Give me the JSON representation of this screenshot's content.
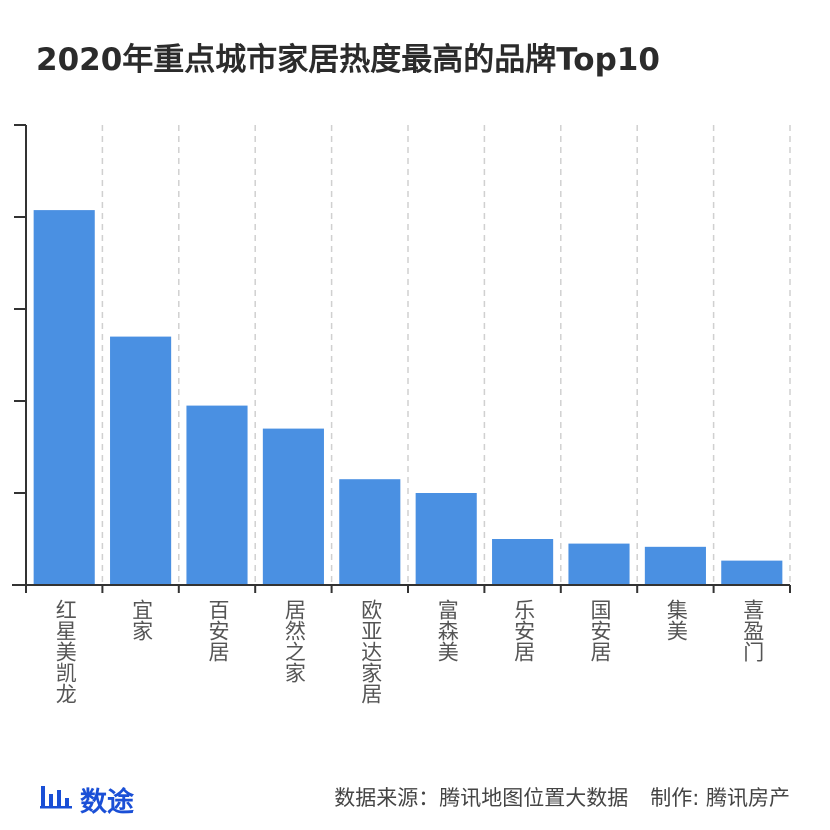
{
  "title": "2020年重点城市家居热度最高的品牌Top10",
  "colors": {
    "bar": "#4a90e2",
    "axis": "#333333",
    "grid": "#d0d0d0",
    "label": "#555555",
    "logo": "#1a4fd6"
  },
  "chart_data": {
    "type": "bar",
    "title": "2020年重点城市家居热度最高的品牌Top10",
    "xlabel": "",
    "ylabel": "",
    "categories": [
      "红星美凯龙",
      "宜家",
      "百安居",
      "居然之家",
      "欧亚达家居",
      "富森美",
      "乐安居",
      "国安居",
      "集美",
      "喜盈门"
    ],
    "values": [
      81.5,
      54,
      39,
      34,
      23,
      20,
      10,
      9,
      8.3,
      5.3
    ],
    "ylim": [
      0,
      100
    ],
    "y_ticks": [
      0,
      20,
      40,
      60,
      80,
      100
    ],
    "y_tick_labels_shown": false,
    "grid": "vertical dashed between categories",
    "legend": "none"
  },
  "footer": {
    "logo_text": "数途",
    "logo_icon": "bar-chart-icon",
    "source": "数据来源：腾讯地图位置大数据",
    "credit": "制作: 腾讯房产"
  }
}
